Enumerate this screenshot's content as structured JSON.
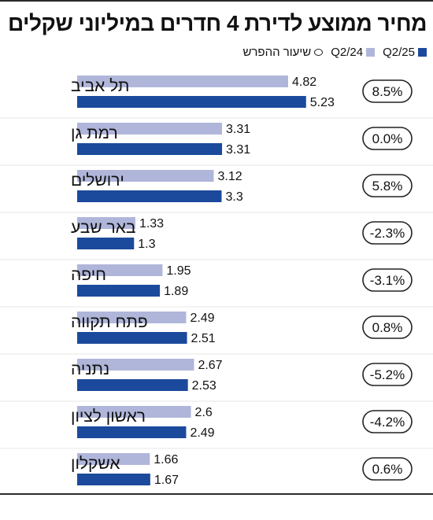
{
  "title": "מחיר ממוצע לדירת 4 חדרים במיליוני שקלים",
  "legend": {
    "q225": "Q2/25",
    "q224": "Q2/24",
    "change": "שיעור ההפרש"
  },
  "colors": {
    "q225": "#1b4a9c",
    "q224": "#b0b6da",
    "rule": "#2a2a2a",
    "text": "#111111"
  },
  "chart_data": {
    "type": "bar",
    "orientation": "horizontal",
    "title": "מחיר ממוצע לדירת 4 חדרים במיליוני שקלים",
    "categories": [
      "תל אביב",
      "רמת גן",
      "ירושלים",
      "באר שבע",
      "חיפה",
      "פתח תקווה",
      "נתניה",
      "ראשון לציון",
      "אשקלון"
    ],
    "series": [
      {
        "name": "Q2/24",
        "values": [
          4.82,
          3.31,
          3.12,
          1.33,
          1.95,
          2.49,
          2.67,
          2.6,
          1.66
        ]
      },
      {
        "name": "Q2/25",
        "values": [
          5.23,
          3.31,
          3.3,
          1.3,
          1.89,
          2.51,
          2.53,
          2.49,
          1.67
        ]
      }
    ],
    "value_labels": [
      [
        "4.82",
        "5.23"
      ],
      [
        "3.31",
        "3.31"
      ],
      [
        "3.12",
        "3.3"
      ],
      [
        "1.33",
        "1.3"
      ],
      [
        "1.95",
        "1.89"
      ],
      [
        "2.49",
        "2.51"
      ],
      [
        "2.67",
        "2.53"
      ],
      [
        "2.6",
        "2.49"
      ],
      [
        "1.66",
        "1.67"
      ]
    ],
    "change": [
      "8.5%",
      "0.0%",
      "5.8%",
      "-2.3%",
      "-3.1%",
      "0.8%",
      "-5.2%",
      "-4.2%",
      "0.6%"
    ],
    "xlim": [
      0,
      5.23
    ],
    "grid": false,
    "legend_position": "top-right"
  }
}
